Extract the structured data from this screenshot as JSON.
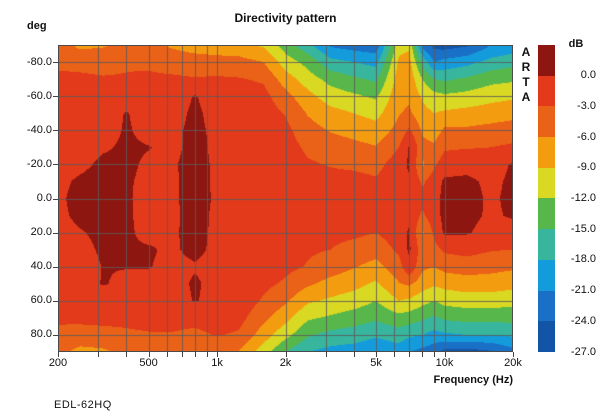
{
  "window": {
    "background": "#ffffff"
  },
  "footer_label": "EDL-62HQ",
  "branding": "ARTA",
  "colorbar": {
    "label": "dB",
    "tick_labels": [
      "0.0",
      "-3.0",
      "-6.0",
      "-9.0",
      "-12.0",
      "-15.0",
      "-18.0",
      "-21.0",
      "-24.0",
      "-27.0"
    ],
    "colors": [
      "#8e1611",
      "#e23a1b",
      "#ea6118",
      "#f49c10",
      "#d9d822",
      "#58b74b",
      "#37b59d",
      "#149bdc",
      "#1a70c6",
      "#1254a6"
    ]
  },
  "chart_data": {
    "type": "heatmap",
    "title": "Directivity pattern",
    "y_unit": "deg",
    "xlabel": "Frequency (Hz)",
    "x_scale": "log",
    "x_range": [
      200,
      20000
    ],
    "y_range": [
      -90,
      90
    ],
    "levels_db": [
      0,
      -3,
      -6,
      -9,
      -12,
      -15,
      -18,
      -21,
      -24,
      -27
    ],
    "x_major_ticks": [
      {
        "label": "200",
        "hz": 200
      },
      {
        "label": "500",
        "hz": 500
      },
      {
        "label": "1k",
        "hz": 1000
      },
      {
        "label": "2k",
        "hz": 2000
      },
      {
        "label": "5k",
        "hz": 5000
      },
      {
        "label": "10k",
        "hz": 10000
      },
      {
        "label": "20k",
        "hz": 20000
      }
    ],
    "x_minor_ticks_hz": [
      200,
      300,
      400,
      500,
      600,
      700,
      800,
      900,
      1000,
      2000,
      3000,
      4000,
      5000,
      6000,
      7000,
      8000,
      9000,
      10000,
      20000
    ],
    "grid_x_hz": [
      300,
      400,
      500,
      600,
      700,
      800,
      900,
      1000,
      2000,
      3000,
      4000,
      5000,
      6000,
      7000,
      8000,
      9000,
      10000,
      20000
    ],
    "y_ticks": [
      {
        "label": "-80.0",
        "deg": -80
      },
      {
        "label": "-60.0",
        "deg": -60
      },
      {
        "label": "-40.0",
        "deg": -40
      },
      {
        "label": "-20.0",
        "deg": -20
      },
      {
        "label": "0.0",
        "deg": 0
      },
      {
        "label": "20.0",
        "deg": 20
      },
      {
        "label": "40.0",
        "deg": 40
      },
      {
        "label": "60.0",
        "deg": 60
      },
      {
        "label": "80.0",
        "deg": 80
      }
    ],
    "grid_y_deg": [
      -80,
      -60,
      -40,
      -20,
      0,
      20,
      40,
      60,
      80
    ],
    "grid_color": "rgba(90,90,90,0.85)",
    "x_hz": [
      200,
      250,
      315,
      400,
      500,
      630,
      800,
      1000,
      1250,
      1600,
      2000,
      2500,
      3150,
      4000,
      5000,
      6300,
      7000,
      8000,
      9000,
      10000,
      12500,
      16000,
      20000
    ],
    "y_deg": [
      -90,
      -80,
      -70,
      -60,
      -50,
      -40,
      -30,
      -20,
      -10,
      0,
      10,
      20,
      30,
      40,
      50,
      60,
      70,
      80,
      90
    ],
    "values_db": [
      [
        -4.5,
        -6.8,
        -6.4,
        -4.8,
        -5.0,
        -6.5,
        -7.5,
        -7.8,
        -8.0,
        -9.5,
        -13.5,
        -17,
        -21.5,
        -22.5,
        -23,
        -10,
        -9.5,
        -22,
        -25,
        -25.5,
        -24.5,
        -21,
        -20
      ],
      [
        -3.4,
        -3.6,
        -3.8,
        -3.3,
        -3.4,
        -4.0,
        -4.5,
        -4.8,
        -5.0,
        -6.0,
        -10.5,
        -13,
        -17,
        -18,
        -19,
        -8.5,
        -8.0,
        -16,
        -21,
        -20,
        -19,
        -17,
        -16
      ],
      [
        -2.6,
        -2.6,
        -2.8,
        -2.8,
        -2.6,
        -2.6,
        -2.8,
        -2.6,
        -2.8,
        -3.4,
        -7.5,
        -10.5,
        -13,
        -14.5,
        -15.5,
        -7.5,
        -7.0,
        -12,
        -15,
        -15.5,
        -14.5,
        -13,
        -12.5
      ],
      [
        -2.1,
        -2.1,
        -2.0,
        -2.2,
        -2.0,
        -1.6,
        0.2,
        -1.4,
        -1.6,
        -2.0,
        -5.0,
        -8.0,
        -10.5,
        -11.5,
        -12.5,
        -6.8,
        -6.5,
        -9.5,
        -11,
        -11.5,
        -11,
        -10,
        -9.5
      ],
      [
        -1.9,
        -1.8,
        -1.5,
        0.2,
        -1.4,
        -1.0,
        0.5,
        -0.9,
        -0.9,
        -1.4,
        -3.2,
        -6.2,
        -8.0,
        -9.0,
        -10,
        -6.2,
        -5.5,
        -8.0,
        -9.0,
        -8.5,
        -8.0,
        -7.5,
        -7.0
      ],
      [
        -1.7,
        -1.5,
        -1.1,
        0.3,
        -0.8,
        -0.6,
        0.6,
        -0.6,
        -0.7,
        -1.1,
        -2.2,
        -4.8,
        -6.2,
        -7.0,
        -7.8,
        -5.0,
        -2.5,
        -6.5,
        -7.5,
        -5.5,
        -5.5,
        -5.0,
        -4.5
      ],
      [
        -1.5,
        -1.1,
        -0.3,
        0.4,
        0.1,
        -0.6,
        0.7,
        -0.5,
        -0.6,
        -0.7,
        -1.6,
        -3.6,
        -4.5,
        -5.2,
        -5.8,
        -3.0,
        0.3,
        -5.0,
        -5.5,
        -3.4,
        -3.2,
        -3.0,
        -2.5
      ],
      [
        -1.2,
        -0.6,
        0.5,
        0.5,
        -0.4,
        -0.3,
        0.8,
        -0.4,
        -0.5,
        -0.6,
        -1.0,
        -2.6,
        -3.2,
        -3.6,
        -4.0,
        -1.4,
        0.5,
        -6.5,
        -3.5,
        -1.5,
        -1.0,
        -1.2,
        0.3
      ],
      [
        -0.6,
        0.4,
        0.9,
        0.3,
        -0.6,
        -0.4,
        0.8,
        -0.4,
        -0.4,
        -0.5,
        -0.8,
        -1.8,
        -2.0,
        -2.0,
        -2.6,
        -0.8,
        -0.4,
        -3.5,
        -1.5,
        0.5,
        0.6,
        -0.6,
        0.5
      ],
      [
        -0.4,
        0.7,
        1.0,
        0.3,
        -0.8,
        -0.4,
        0.8,
        -0.3,
        -0.4,
        -0.5,
        -0.8,
        -1.2,
        -1.3,
        -1.4,
        -1.6,
        -0.8,
        -1.0,
        -2.2,
        -1.0,
        0.8,
        0.9,
        -0.4,
        0.6
      ],
      [
        -0.6,
        0.6,
        0.9,
        0.3,
        -0.7,
        -0.4,
        0.7,
        -0.4,
        -0.4,
        -0.5,
        -0.8,
        -1.3,
        -1.4,
        -1.5,
        -1.8,
        -0.9,
        -0.8,
        -3.5,
        -1.2,
        0.8,
        0.9,
        -0.5,
        0.4
      ],
      [
        -1.0,
        -0.2,
        0.6,
        0.3,
        -0.5,
        -0.3,
        0.6,
        -0.4,
        -0.5,
        -0.6,
        -1.0,
        -2.0,
        -2.2,
        -2.4,
        -3.0,
        -1.4,
        0.4,
        -6.5,
        -2.5,
        0.5,
        0.3,
        -1.2,
        -1.5
      ],
      [
        -1.4,
        -0.8,
        0.4,
        0.2,
        0.2,
        -0.3,
        0.5,
        -0.5,
        -0.6,
        -0.7,
        -1.4,
        -2.6,
        -3.0,
        -4.0,
        -4.8,
        -2.4,
        0.5,
        -4.5,
        -4.0,
        -2.5,
        -2.0,
        -2.8,
        -3.0
      ],
      [
        -1.7,
        -1.3,
        0.1,
        0.1,
        0.1,
        -0.5,
        -0.2,
        -0.6,
        -0.7,
        -0.8,
        -2.2,
        -3.2,
        -4.5,
        -5.8,
        -7.0,
        -4.2,
        -0.5,
        -5.5,
        -6.0,
        -5.0,
        -4.5,
        -5.0,
        -5.5
      ],
      [
        -1.9,
        -1.6,
        0.2,
        -0.6,
        -0.8,
        -0.9,
        0.3,
        -0.7,
        -0.8,
        -2.2,
        -3.5,
        -5.5,
        -7.0,
        -8.0,
        -9.5,
        -6.2,
        -5.5,
        -7.5,
        -8.5,
        -8.0,
        -7.5,
        -7.5,
        -8.0
      ],
      [
        -2.1,
        -2.0,
        -1.6,
        -1.8,
        -1.6,
        -1.4,
        0.2,
        -0.9,
        -1.0,
        -3.4,
        -5.5,
        -8.5,
        -9.5,
        -10.5,
        -12,
        -9.0,
        -9.5,
        -11,
        -12,
        -11,
        -10.5,
        -10.5,
        -11
      ],
      [
        -2.6,
        -2.4,
        -2.3,
        -2.4,
        -2.2,
        -2.0,
        -2.2,
        -1.8,
        -2.0,
        -5.2,
        -8.0,
        -11.5,
        -12.5,
        -13.5,
        -14.5,
        -13,
        -13.5,
        -14.5,
        -15.5,
        -14.5,
        -14,
        -14,
        -14
      ],
      [
        -3.6,
        -4.0,
        -3.8,
        -3.4,
        -3.2,
        -3.2,
        -3.6,
        -2.8,
        -3.4,
        -7.5,
        -11,
        -14.5,
        -16,
        -16.5,
        -17.5,
        -16.5,
        -17.5,
        -18,
        -19,
        -18.5,
        -18,
        -18,
        -17.5
      ],
      [
        -5.0,
        -7.0,
        -6.6,
        -5.2,
        -5.6,
        -5.8,
        -6.2,
        -6.0,
        -6.2,
        -10.5,
        -15,
        -18,
        -19,
        -19.5,
        -20.5,
        -19.5,
        -21,
        -22,
        -23,
        -25,
        -25.5,
        -24.5,
        -22
      ]
    ]
  }
}
